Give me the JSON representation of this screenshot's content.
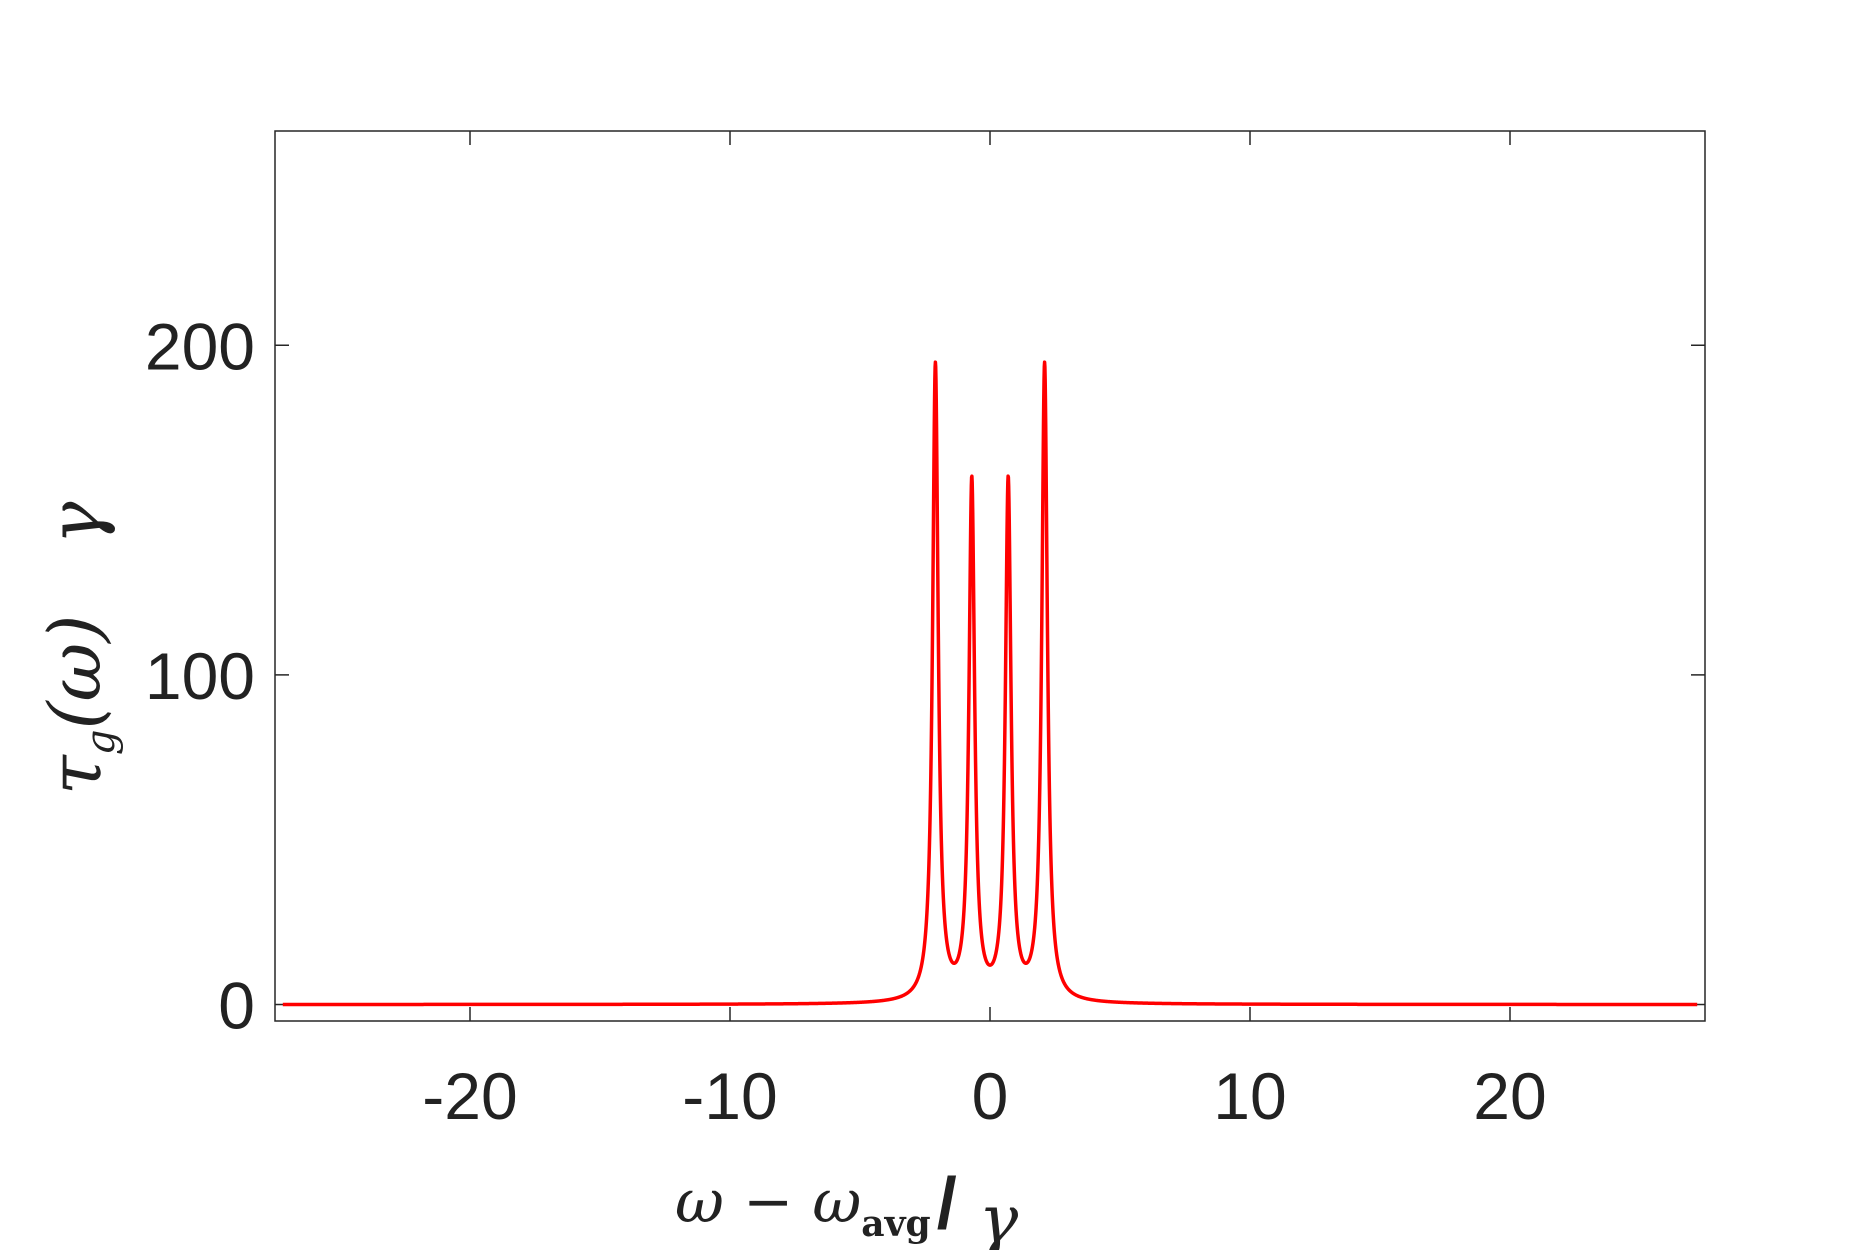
{
  "chart_data": {
    "type": "line",
    "title": "",
    "xlabel": {
      "main": "ω − ω",
      "subscript": "avg",
      "slash": "/",
      "unit": "γ"
    },
    "ylabel": {
      "main": "τ",
      "subscript": "g",
      "arg": "(ω)",
      "unit": "γ"
    },
    "xlim": [
      -27.5,
      27.5
    ],
    "ylim": [
      -5,
      265
    ],
    "x_ticks": [
      -20,
      -10,
      0,
      10,
      20
    ],
    "x_tick_labels": [
      "-20",
      "-10",
      "0",
      "10",
      "20"
    ],
    "y_ticks": [
      0,
      100,
      200
    ],
    "y_tick_labels": [
      "0",
      "100",
      "200"
    ],
    "grid": false,
    "legend": "none",
    "series": [
      {
        "color": "#ff0000",
        "x_range": [
          -27.2,
          27.2
        ],
        "peaks": [
          {
            "center": -2.1,
            "height": 193
          },
          {
            "center": -0.7,
            "height": 157
          },
          {
            "center": 0.7,
            "height": 157
          },
          {
            "center": 2.1,
            "height": 193
          }
        ],
        "sample_points": [
          {
            "x": -27,
            "y": 0.3
          },
          {
            "x": -20,
            "y": 0.5
          },
          {
            "x": -10,
            "y": 1.5
          },
          {
            "x": -5,
            "y": 4
          },
          {
            "x": -3,
            "y": 12
          },
          {
            "x": -2.1,
            "y": 193
          },
          {
            "x": -1.4,
            "y": 23
          },
          {
            "x": -0.7,
            "y": 157
          },
          {
            "x": 0,
            "y": 26
          },
          {
            "x": 0.7,
            "y": 157
          },
          {
            "x": 1.4,
            "y": 23
          },
          {
            "x": 2.1,
            "y": 193
          },
          {
            "x": 3,
            "y": 12
          },
          {
            "x": 5,
            "y": 4
          },
          {
            "x": 10,
            "y": 1.5
          },
          {
            "x": 20,
            "y": 0.5
          },
          {
            "x": 27,
            "y": 0.3
          }
        ]
      }
    ]
  }
}
